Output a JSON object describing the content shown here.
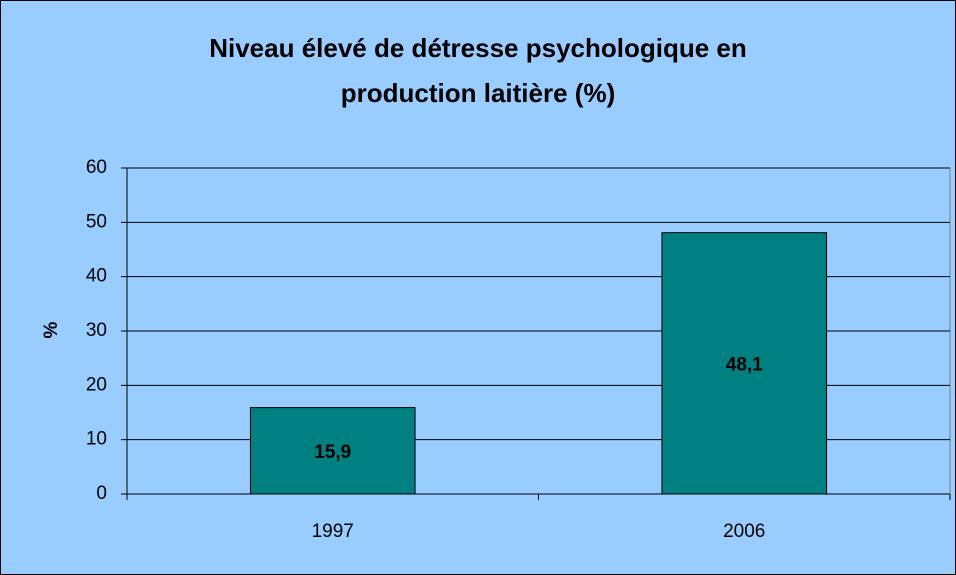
{
  "chart_data": {
    "type": "bar",
    "title": "Niveau élevé de détresse psychologique en production laitière (%)",
    "ylabel": "%",
    "categories": [
      "1997",
      "2006"
    ],
    "values": [
      15.9,
      48.1
    ],
    "value_labels": [
      "15,9",
      "48,1"
    ],
    "color": "#008080",
    "ylim": [
      0,
      60
    ],
    "yticks": [
      0,
      10,
      20,
      30,
      40,
      50,
      60
    ],
    "grid": true
  }
}
